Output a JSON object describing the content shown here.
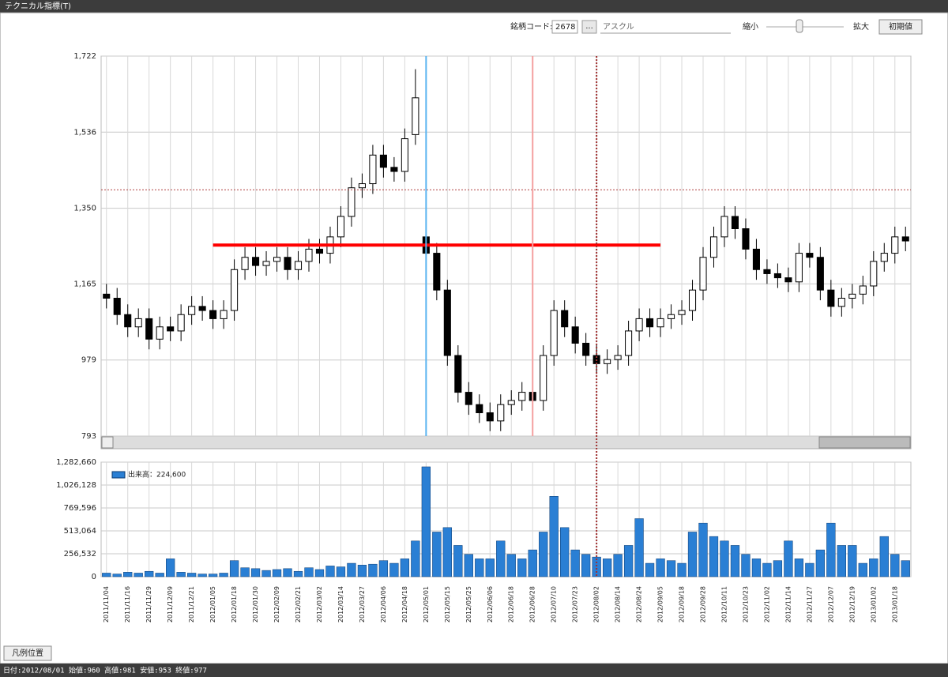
{
  "window": {
    "title": "テクニカル指標(T)",
    "code_label": "銘柄コード:",
    "code": "2678",
    "browse": "...",
    "name": "アスクル",
    "zoom_out": "縮小",
    "zoom_in": "拡大",
    "reset": "初期値",
    "legend_button": "凡例位置",
    "status": "日付:2012/08/01 始値:960 高値:981 安値:953 終値:977"
  },
  "chart_data": [
    {
      "type": "candlestick",
      "open": [
        1140,
        1130,
        1090,
        1060,
        1080,
        1030,
        1060,
        1050,
        1090,
        1110,
        1100,
        1080,
        1100,
        1200,
        1230,
        1210,
        1220,
        1230,
        1200,
        1220,
        1250,
        1240,
        1280,
        1330,
        1400,
        1410,
        1480,
        1450,
        1440,
        1530,
        1280,
        1240,
        1150,
        990,
        900,
        870,
        850,
        830,
        870,
        880,
        900,
        880,
        990,
        1100,
        1060,
        1020,
        990,
        970,
        980,
        990,
        1050,
        1080,
        1060,
        1080,
        1090,
        1100,
        1150,
        1230,
        1280,
        1330,
        1300,
        1250,
        1200,
        1190,
        1180,
        1170,
        1240,
        1230,
        1150,
        1110,
        1130,
        1140,
        1160,
        1220,
        1240,
        1280
      ],
      "high": [
        1165,
        1155,
        1115,
        1105,
        1105,
        1085,
        1085,
        1115,
        1135,
        1135,
        1125,
        1125,
        1225,
        1255,
        1255,
        1245,
        1255,
        1255,
        1245,
        1275,
        1275,
        1305,
        1355,
        1425,
        1435,
        1505,
        1505,
        1475,
        1545,
        1690,
        1290,
        1265,
        1175,
        1015,
        925,
        895,
        875,
        895,
        905,
        925,
        925,
        1015,
        1125,
        1125,
        1085,
        1045,
        1015,
        1005,
        1015,
        1075,
        1105,
        1105,
        1105,
        1115,
        1125,
        1175,
        1255,
        1305,
        1355,
        1355,
        1325,
        1275,
        1225,
        1215,
        1205,
        1265,
        1265,
        1255,
        1175,
        1155,
        1165,
        1185,
        1245,
        1265,
        1305,
        1305
      ],
      "low": [
        1105,
        1065,
        1035,
        1035,
        1005,
        1005,
        1025,
        1025,
        1065,
        1075,
        1055,
        1055,
        1075,
        1175,
        1185,
        1185,
        1195,
        1175,
        1175,
        1195,
        1215,
        1215,
        1255,
        1305,
        1375,
        1385,
        1425,
        1415,
        1415,
        1505,
        1215,
        1125,
        965,
        875,
        845,
        825,
        805,
        805,
        845,
        855,
        855,
        855,
        965,
        1035,
        995,
        965,
        945,
        945,
        955,
        965,
        1025,
        1035,
        1035,
        1055,
        1065,
        1075,
        1125,
        1205,
        1255,
        1275,
        1225,
        1175,
        1165,
        1155,
        1145,
        1145,
        1205,
        1125,
        1085,
        1085,
        1105,
        1115,
        1135,
        1195,
        1215,
        1245
      ],
      "close": [
        1130,
        1090,
        1060,
        1080,
        1030,
        1060,
        1050,
        1090,
        1110,
        1100,
        1080,
        1100,
        1200,
        1230,
        1210,
        1220,
        1230,
        1200,
        1220,
        1250,
        1240,
        1280,
        1330,
        1400,
        1410,
        1480,
        1450,
        1440,
        1520,
        1620,
        1240,
        1150,
        990,
        900,
        870,
        850,
        830,
        870,
        880,
        900,
        880,
        990,
        1100,
        1060,
        1020,
        990,
        970,
        980,
        990,
        1050,
        1080,
        1060,
        1080,
        1090,
        1100,
        1150,
        1230,
        1280,
        1330,
        1300,
        1250,
        1200,
        1190,
        1180,
        1170,
        1240,
        1230,
        1150,
        1110,
        1130,
        1140,
        1160,
        1220,
        1240,
        1280,
        1270
      ],
      "up_color": "#ffffff",
      "down_color": "#000000",
      "ylim": [
        793,
        1722
      ],
      "yticks": [
        793,
        979,
        {
          "value": 1165,
          "label": "1,165"
        },
        {
          "value": 1350,
          "label": "1,350"
        },
        {
          "value": 1536,
          "label": "1,536"
        },
        {
          "value": 1722,
          "label": "1,722"
        }
      ],
      "grid": true,
      "lines": [
        {
          "orientation": "horizontal",
          "value": 1260,
          "start": "2012/01/05",
          "end": "2012/09/05",
          "color": "#ff0000",
          "style": "solid"
        },
        {
          "orientation": "horizontal",
          "value": 1395,
          "color": "#b04040",
          "style": "dotted"
        },
        {
          "orientation": "vertical",
          "at": "2012/05/01",
          "color": "#5ab4f0",
          "style": "solid"
        },
        {
          "orientation": "vertical",
          "at": "2012/06/28",
          "color": "#f4a0a0",
          "style": "solid"
        },
        {
          "orientation": "vertical",
          "at": "2012/08/02",
          "color": "#a03030",
          "style": "dotted"
        }
      ]
    },
    {
      "type": "bar",
      "categories": [
        "2011/11/04",
        null,
        "2011/11/16",
        null,
        "2011/11/29",
        null,
        "2011/12/09",
        null,
        "2011/12/21",
        null,
        "2012/01/05",
        null,
        "2012/01/18",
        null,
        "2012/01/30",
        null,
        "2012/02/09",
        null,
        "2012/02/21",
        null,
        "2012/03/02",
        null,
        "2012/03/14",
        null,
        "2012/03/27",
        null,
        "2012/04/06",
        null,
        "2012/04/18",
        null,
        "2012/05/01",
        null,
        "2012/05/15",
        null,
        "2012/05/25",
        null,
        "2012/06/06",
        null,
        "2012/06/18",
        null,
        "2012/06/28",
        null,
        "2012/07/10",
        null,
        "2012/07/23",
        null,
        "2012/08/02",
        null,
        "2012/08/14",
        null,
        "2012/08/24",
        null,
        "2012/09/05",
        null,
        "2012/09/18",
        null,
        "2012/09/28",
        null,
        "2012/10/11",
        null,
        "2012/10/23",
        null,
        "2012/11/02",
        null,
        "2012/11/14",
        null,
        "2012/11/27",
        null,
        "2012/12/07",
        null,
        "2012/12/19",
        null,
        "2013/01/02",
        null,
        "2013/01/18",
        null
      ],
      "series": [
        {
          "name": "出来高：224,600",
          "color": "#2a7fd4",
          "values": [
            40000,
            30000,
            50000,
            40000,
            60000,
            40000,
            200000,
            50000,
            40000,
            30000,
            30000,
            40000,
            180000,
            100000,
            90000,
            70000,
            80000,
            90000,
            60000,
            100000,
            80000,
            120000,
            110000,
            150000,
            130000,
            140000,
            180000,
            150000,
            200000,
            400000,
            1230000,
            500000,
            550000,
            350000,
            250000,
            200000,
            200000,
            400000,
            250000,
            200000,
            300000,
            500000,
            900000,
            550000,
            300000,
            250000,
            220000,
            200000,
            250000,
            350000,
            650000,
            150000,
            200000,
            180000,
            150000,
            500000,
            600000,
            450000,
            400000,
            350000,
            250000,
            200000,
            150000,
            180000,
            400000,
            200000,
            150000,
            300000,
            600000,
            350000,
            350000,
            150000,
            200000,
            450000,
            250000,
            180000
          ]
        }
      ],
      "ylim": [
        0,
        1282660
      ],
      "yticks": [
        0,
        {
          "value": 256532,
          "label": "256,532"
        },
        {
          "value": 513064,
          "label": "513,064"
        },
        {
          "value": 769596,
          "label": "769,596"
        },
        {
          "value": 1026128,
          "label": "1,026,128"
        },
        {
          "value": 1282660,
          "label": "1,282,660"
        }
      ],
      "grid": true
    }
  ]
}
